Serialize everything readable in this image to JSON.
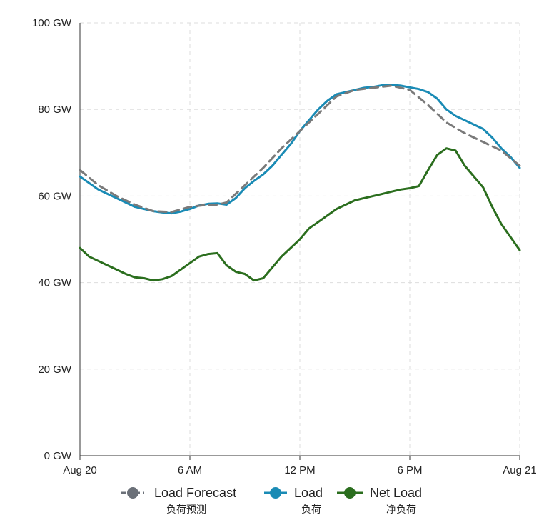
{
  "chart_data": {
    "type": "line",
    "x_ticks": [
      "Aug 20",
      "6 AM",
      "12 PM",
      "6 PM",
      "Aug 21"
    ],
    "y_ticks": [
      "0 GW",
      "20 GW",
      "40 GW",
      "60 GW",
      "80 GW",
      "100 GW"
    ],
    "ylim": [
      0,
      100
    ],
    "x_range_hours": [
      0,
      24
    ],
    "grid": true,
    "legend_position": "bottom",
    "series": [
      {
        "name": "Load Forecast",
        "subtitle": "负荷预测",
        "color": "#7a7a7a",
        "marker_color": "#6b7078",
        "dash": true,
        "x": [
          0,
          1,
          2,
          3,
          4,
          5,
          6,
          7,
          7.5,
          8,
          9,
          10,
          11,
          12,
          13,
          14,
          15,
          16,
          17,
          18,
          19,
          20,
          21,
          22,
          23,
          24
        ],
        "values": [
          66,
          62.5,
          60,
          58,
          56.5,
          56.3,
          57.5,
          58,
          58,
          58.5,
          62.5,
          66.5,
          71,
          75,
          79,
          83,
          84.5,
          85,
          85.5,
          84.5,
          81,
          77,
          74.5,
          72.5,
          70.5,
          67
        ]
      },
      {
        "name": "Load",
        "subtitle": "负荷",
        "color": "#1a8bb5",
        "marker_color": "#1a8bb5",
        "dash": false,
        "x": [
          0,
          0.5,
          1,
          1.5,
          2,
          2.5,
          3,
          3.5,
          4,
          4.5,
          5,
          5.5,
          6,
          6.5,
          7,
          7.5,
          8,
          8.5,
          9,
          9.5,
          10,
          10.5,
          11,
          11.5,
          12,
          12.5,
          13,
          13.5,
          14,
          14.5,
          15,
          15.5,
          16,
          16.5,
          17,
          17.5,
          18,
          18.5,
          19,
          19.5,
          20,
          20.5,
          21,
          21.5,
          22,
          22.5,
          23,
          23.5,
          24
        ],
        "values": [
          64.5,
          63,
          61.5,
          60.5,
          59.5,
          58.5,
          57.5,
          57,
          56.5,
          56.2,
          56,
          56.4,
          57,
          57.8,
          58.2,
          58.3,
          58,
          59.5,
          61.8,
          63.5,
          65,
          67,
          69.5,
          72,
          75,
          77.5,
          80,
          82,
          83.5,
          84,
          84.5,
          85,
          85.2,
          85.6,
          85.7,
          85.5,
          85.1,
          84.7,
          84,
          82.5,
          80,
          78.5,
          77.5,
          76.5,
          75.5,
          73.5,
          71,
          69,
          66.5
        ]
      },
      {
        "name": "Net Load",
        "subtitle": "净负荷",
        "color": "#2b6e1e",
        "marker_color": "#2b6e1e",
        "dash": false,
        "x": [
          0,
          0.5,
          1,
          1.5,
          2,
          2.5,
          3,
          3.5,
          4,
          4.5,
          5,
          5.5,
          6,
          6.5,
          7,
          7.5,
          8,
          8.5,
          9,
          9.5,
          10,
          10.5,
          11,
          11.5,
          12,
          12.5,
          13,
          13.5,
          14,
          14.5,
          15,
          15.5,
          16,
          16.5,
          17,
          17.5,
          18,
          18.5,
          19,
          19.5,
          20,
          20.5,
          21,
          21.5,
          22,
          22.5,
          23,
          23.5,
          24
        ],
        "values": [
          48,
          46,
          45,
          44,
          43,
          42,
          41.2,
          41,
          40.5,
          40.8,
          41.5,
          43,
          44.5,
          46,
          46.6,
          46.8,
          44,
          42.5,
          42,
          40.5,
          41,
          43.5,
          46,
          48,
          50,
          52.5,
          54,
          55.5,
          57,
          58,
          59,
          59.5,
          60,
          60.5,
          61,
          61.5,
          61.8,
          62.3,
          66,
          69.5,
          71,
          70.5,
          67,
          64.5,
          62,
          57.5,
          53.5,
          50.5,
          47.5
        ]
      }
    ]
  }
}
